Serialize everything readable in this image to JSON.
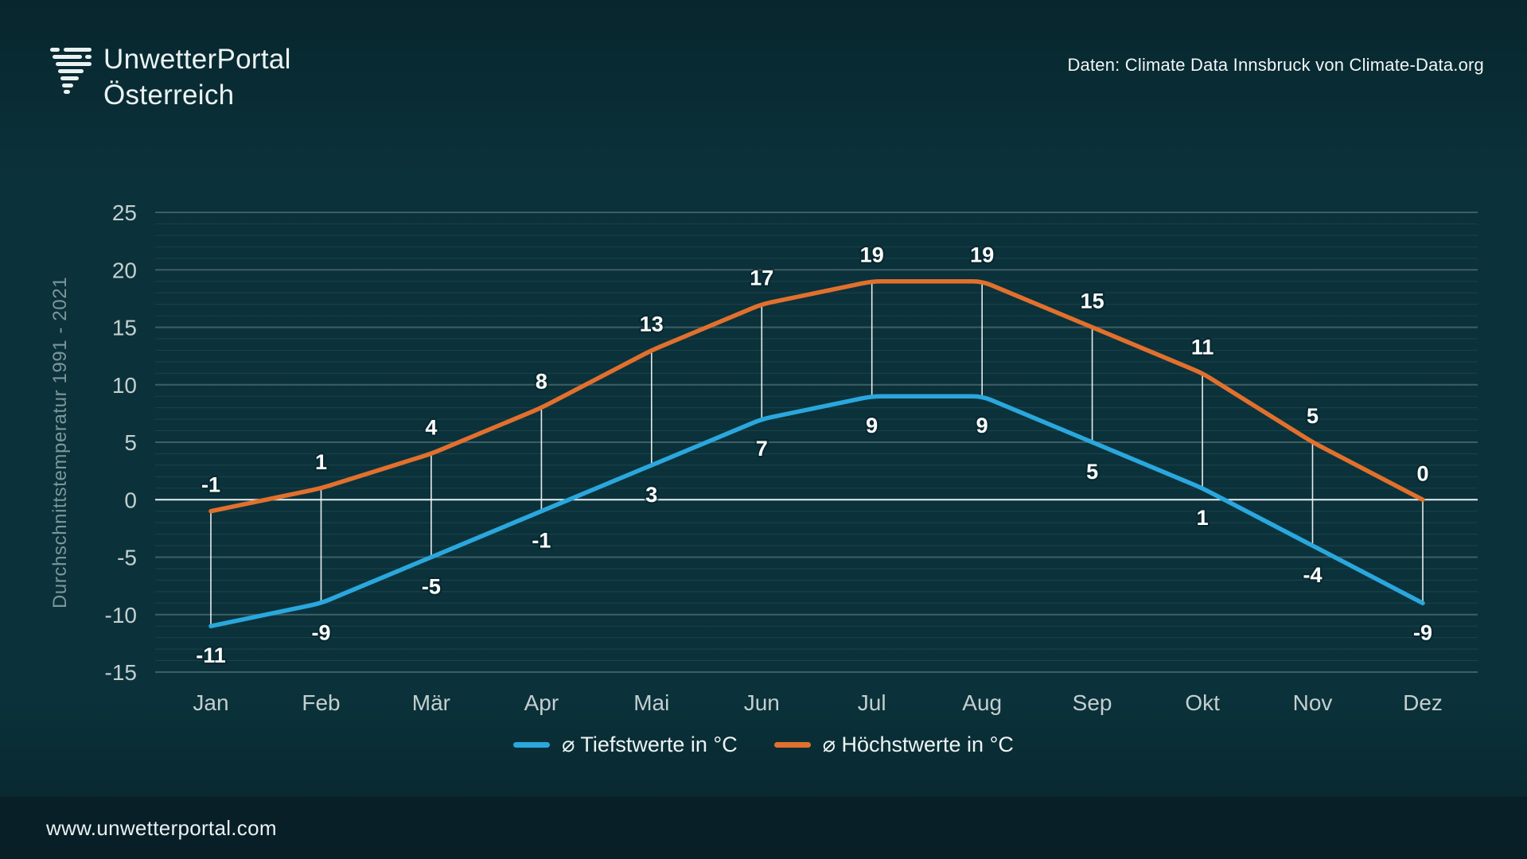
{
  "header": {
    "brand_line1": "UnwetterPortal",
    "brand_line2": "Österreich",
    "source_note": "Daten: Climate Data Innsbruck von Climate-Data.org"
  },
  "chart_data": {
    "type": "line",
    "categories": [
      "Jan",
      "Feb",
      "Mär",
      "Apr",
      "Mai",
      "Jun",
      "Jul",
      "Aug",
      "Sep",
      "Okt",
      "Nov",
      "Dez"
    ],
    "series": [
      {
        "name": "⌀ Tiefstwerte in °C",
        "role": "low",
        "color": "#2aa7dd",
        "values": [
          -11,
          -9,
          -5,
          -1,
          3,
          7,
          9,
          9,
          5,
          1,
          -4,
          -9
        ]
      },
      {
        "name": "⌀ Höchstwerte in °C",
        "role": "high",
        "color": "#e2702d",
        "values": [
          -1,
          1,
          4,
          8,
          13,
          17,
          19,
          19,
          15,
          11,
          5,
          0
        ]
      }
    ],
    "xlabel": "",
    "ylabel": "Durchschnittstemperatur 1991 - 2021",
    "ylim": [
      -15,
      25
    ],
    "ytick_step": 5,
    "minor_grid_step": 1,
    "grid": true,
    "zero_line": true,
    "point_connectors": true,
    "data_labels": true,
    "legend_position": "bottom"
  },
  "footer": {
    "website": "www.unwetterportal.com"
  },
  "colors": {
    "background": "#0b313a",
    "footer_background": "#081f27",
    "grid_major": "rgba(214,232,232,0.25)",
    "grid_minor": "rgba(214,232,232,0.09)",
    "zero_line": "#e8f0f0",
    "connector": "rgba(255,255,255,0.9)",
    "tick_label": "#c3cfcf",
    "data_label": "#ffffff",
    "axis_title": "#7d979b"
  }
}
